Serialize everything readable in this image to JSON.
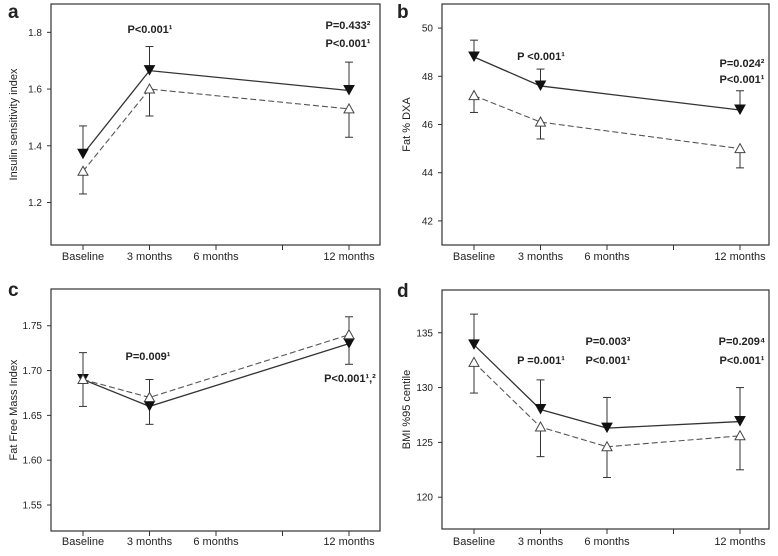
{
  "chart_data": [
    {
      "type": "line",
      "panel_label": "a",
      "ylabel": "Insulin sensitivity index",
      "ylim": [
        1.05,
        1.9
      ],
      "yticks": [
        "1.2",
        "1.4",
        "1.6",
        "1.8"
      ],
      "ytick_values": [
        1.2,
        1.4,
        1.6,
        1.8
      ],
      "x_ticks": [
        0,
        3,
        6,
        9,
        12
      ],
      "x_tick_labels": [
        "Baseline",
        "3 months",
        "6 months",
        "",
        "12 months"
      ],
      "series": [
        {
          "name": "filled",
          "marker": "filled-down-triangle",
          "line": "solid",
          "x": [
            0,
            3,
            12
          ],
          "values": [
            1.37,
            1.665,
            1.595
          ],
          "err_end": [
            1.47,
            1.75,
            1.695
          ]
        },
        {
          "name": "open",
          "marker": "open-up-triangle",
          "line": "dashed",
          "x": [
            0,
            3,
            12
          ],
          "values": [
            1.31,
            1.6,
            1.53
          ],
          "err_end": [
            1.23,
            1.505,
            1.43
          ]
        }
      ],
      "annotations": [
        "P<0.001¹",
        "P=0.433²",
        "P<0.001¹"
      ]
    },
    {
      "type": "line",
      "panel_label": "b",
      "ylabel": "Fat % DXA",
      "ylim": [
        41,
        51
      ],
      "yticks": [
        "42",
        "44",
        "46",
        "48",
        "50"
      ],
      "ytick_values": [
        42,
        44,
        46,
        48,
        50
      ],
      "x_ticks": [
        0,
        3,
        6,
        9,
        12
      ],
      "x_tick_labels": [
        "Baseline",
        "3 months",
        "6 months",
        "",
        "12 months"
      ],
      "series": [
        {
          "name": "filled",
          "marker": "filled-down-triangle",
          "line": "solid",
          "x": [
            0,
            3,
            12
          ],
          "values": [
            48.8,
            47.6,
            46.6
          ],
          "err_end": [
            49.5,
            48.3,
            47.4
          ]
        },
        {
          "name": "open",
          "marker": "open-up-triangle",
          "line": "dashed",
          "x": [
            0,
            3,
            12
          ],
          "values": [
            47.2,
            46.1,
            45.0
          ],
          "err_end": [
            46.5,
            45.4,
            44.2
          ]
        }
      ],
      "annotations": [
        "P <0.001¹",
        "P=0.024²",
        "P<0.001¹"
      ]
    },
    {
      "type": "line",
      "panel_label": "c",
      "ylabel": "Fat Free Mass Index",
      "ylim": [
        1.521,
        1.791
      ],
      "yticks": [
        "1.55",
        "1.60",
        "1.65",
        "1.70",
        "1.75"
      ],
      "ytick_values": [
        1.55,
        1.6,
        1.65,
        1.7,
        1.75
      ],
      "x_ticks": [
        0,
        3,
        6,
        9,
        12
      ],
      "x_tick_labels": [
        "Baseline",
        "3 months",
        "6 months",
        "",
        "12 months"
      ],
      "series": [
        {
          "name": "filled",
          "marker": "filled-down-triangle",
          "line": "solid",
          "x": [
            0,
            3,
            12
          ],
          "values": [
            1.69,
            1.66,
            1.73
          ],
          "err_end": [
            1.66,
            1.64,
            1.707
          ]
        },
        {
          "name": "open",
          "marker": "open-up-triangle",
          "line": "dashed",
          "x": [
            0,
            3,
            12
          ],
          "values": [
            1.69,
            1.67,
            1.74
          ],
          "err_end": [
            1.72,
            1.69,
            1.76
          ]
        }
      ],
      "annotations": [
        "P=0.009¹",
        "P<0.001¹,²"
      ]
    },
    {
      "type": "line",
      "panel_label": "d",
      "ylabel": "BMI %95 centile",
      "ylim": [
        117.1,
        138.9
      ],
      "yticks": [
        "120",
        "125",
        "130",
        "135"
      ],
      "ytick_values": [
        120,
        125,
        130,
        135
      ],
      "x_ticks": [
        0,
        3,
        6,
        9,
        12
      ],
      "x_tick_labels": [
        "Baseline",
        "3 months",
        "6 months",
        "",
        "12 months"
      ],
      "series": [
        {
          "name": "filled",
          "marker": "filled-down-triangle",
          "line": "solid",
          "x": [
            0,
            3,
            6,
            12
          ],
          "values": [
            133.9,
            128.0,
            126.3,
            126.9
          ],
          "err_end": [
            136.7,
            130.7,
            129.1,
            130.0
          ]
        },
        {
          "name": "open",
          "marker": "open-up-triangle",
          "line": "dashed",
          "x": [
            0,
            3,
            6,
            12
          ],
          "values": [
            132.3,
            126.4,
            124.6,
            125.6
          ],
          "err_end": [
            129.5,
            123.7,
            121.8,
            122.5
          ]
        }
      ],
      "annotations": [
        "P =0.001¹",
        "P=0.003³",
        "P<0.001¹",
        "P=0.209⁴",
        "P<0.001¹"
      ]
    }
  ]
}
